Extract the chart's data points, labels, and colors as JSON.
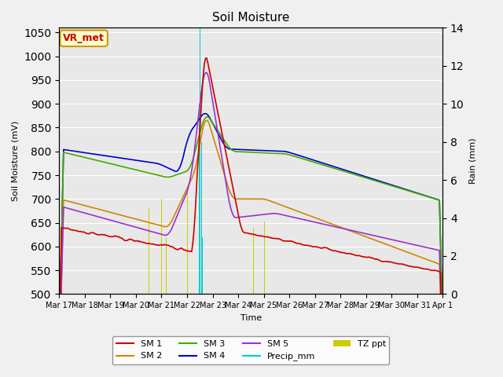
{
  "title": "Soil Moisture",
  "xlabel": "Time",
  "ylabel_left": "Soil Moisture (mV)",
  "ylabel_right": "Rain (mm)",
  "ylim_left": [
    500,
    1060
  ],
  "ylim_right": [
    0,
    14
  ],
  "yticks_left": [
    500,
    550,
    600,
    650,
    700,
    750,
    800,
    850,
    900,
    950,
    1000,
    1050
  ],
  "yticks_right": [
    0,
    2,
    4,
    6,
    8,
    10,
    12,
    14
  ],
  "background_color": "#f0f0f0",
  "plot_bg_color": "#e8e8e8",
  "colors": {
    "SM1": "#cc0000",
    "SM2": "#cc8800",
    "SM3": "#44aa00",
    "SM4": "#0000cc",
    "SM5": "#9933cc",
    "Precip": "#00cccc",
    "TZppt": "#cccc00"
  },
  "n_points": 360,
  "annotation_text": "VR_met",
  "annotation_bg": "#ffffcc",
  "annotation_border": "#cc9900"
}
